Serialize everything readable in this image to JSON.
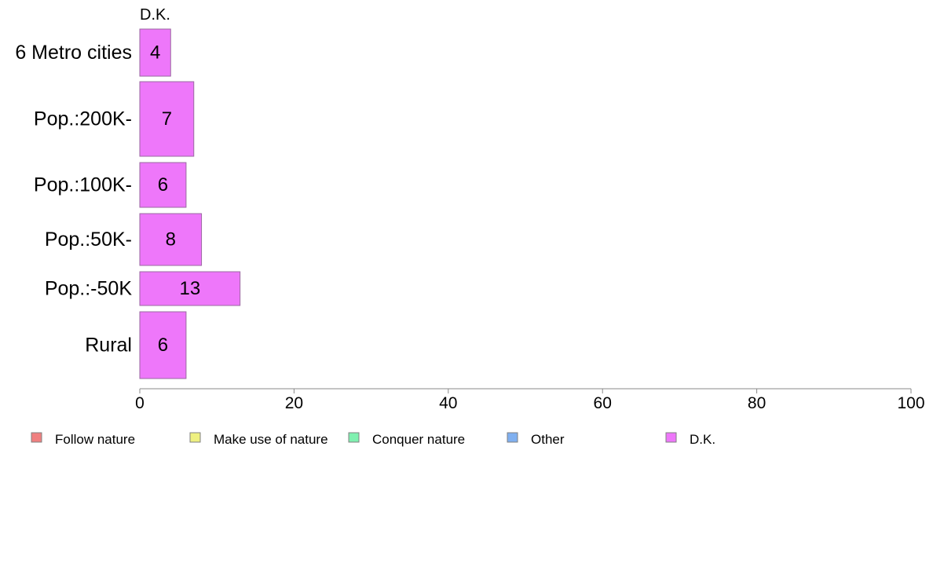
{
  "chart_data": {
    "type": "bar",
    "orientation": "horizontal",
    "stacked": true,
    "series_title": "D.K.",
    "categories": [
      "6 Metro cities",
      "Pop.:200K-",
      "Pop.:100K-",
      "Pop.:50K-",
      "Pop.:-50K",
      "Rural"
    ],
    "series": [
      {
        "name": "Follow nature",
        "color": "#F08080",
        "values": [
          null,
          null,
          null,
          null,
          null,
          null
        ]
      },
      {
        "name": "Make use of nature",
        "color": "#EEF080",
        "values": [
          null,
          null,
          null,
          null,
          null,
          null
        ]
      },
      {
        "name": "Conquer nature",
        "color": "#80F0B0",
        "values": [
          null,
          null,
          null,
          null,
          null,
          null
        ]
      },
      {
        "name": "Other",
        "color": "#80B0F0",
        "values": [
          null,
          null,
          null,
          null,
          null,
          null
        ]
      },
      {
        "name": "D.K.",
        "color": "#EE77FA",
        "values": [
          4,
          7,
          6,
          8,
          13,
          6
        ]
      }
    ],
    "data_labels": [
      "4",
      "7",
      "6",
      "8",
      "13",
      "6"
    ],
    "xlim": [
      0,
      100
    ],
    "xticks": [
      0,
      20,
      40,
      60,
      80,
      100
    ],
    "xtick_labels": [
      "0",
      "20",
      "40",
      "60",
      "80",
      "100"
    ],
    "xlabel": "",
    "ylabel": "",
    "grid": false,
    "legend_position": "bottom"
  }
}
